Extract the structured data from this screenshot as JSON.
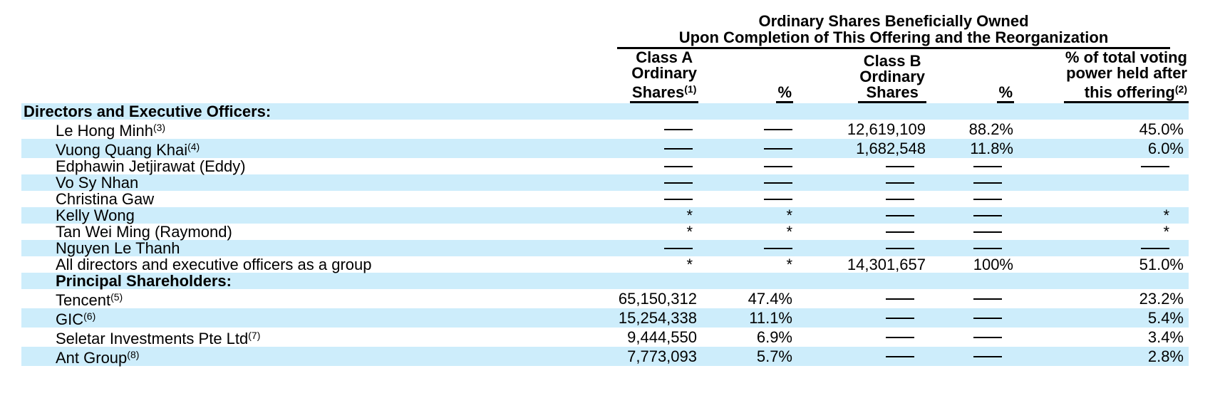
{
  "page": {
    "background_color": "#ffffff",
    "text_color": "#000000",
    "stripe_color": "#CDEDFB"
  },
  "table": {
    "group_header": {
      "line1": "Ordinary Shares Beneficially Owned",
      "line2": "Upon Completion of This Offering and the Reorganization"
    },
    "columns": [
      {
        "id": "classA",
        "label_lines": [
          "Class A",
          "Ordinary",
          "Shares"
        ],
        "sup": "(1)"
      },
      {
        "id": "pctA",
        "label_lines": [
          "%"
        ]
      },
      {
        "id": "classB",
        "label_lines": [
          "Class B",
          "Ordinary",
          "Shares"
        ]
      },
      {
        "id": "pctB",
        "label_lines": [
          "%"
        ]
      },
      {
        "id": "voting",
        "label_lines": [
          "% of total voting",
          "power held after",
          "this offering"
        ],
        "sup": "(2)"
      }
    ],
    "rows": [
      {
        "label": "Directors and Executive Officers:",
        "bold": true,
        "indent": 0,
        "cells": [
          "",
          "",
          "",
          "",
          ""
        ]
      },
      {
        "label": "Le Hong Minh",
        "sup": "(3)",
        "indent": 1,
        "cells": [
          "—",
          "—",
          "12,619,109",
          "88.2%",
          "45.0%"
        ]
      },
      {
        "label": "Vuong Quang Khai",
        "sup": "(4)",
        "indent": 1,
        "cells": [
          "—",
          "—",
          "1,682,548",
          "11.8%",
          "6.0%"
        ]
      },
      {
        "label": "Edphawin Jetjirawat (Eddy)",
        "indent": 1,
        "cells": [
          "—",
          "—",
          "—",
          "—",
          "—"
        ]
      },
      {
        "label": "Vo Sy Nhan",
        "indent": 1,
        "cells": [
          "—",
          "—",
          "—",
          "—",
          ""
        ]
      },
      {
        "label": "Christina Gaw",
        "indent": 1,
        "cells": [
          "—",
          "—",
          "—",
          "—",
          ""
        ]
      },
      {
        "label": "Kelly Wong",
        "indent": 1,
        "cells": [
          "*",
          "*",
          "—",
          "—",
          "*"
        ]
      },
      {
        "label": "Tan Wei Ming (Raymond)",
        "indent": 1,
        "cells": [
          "*",
          "*",
          "—",
          "—",
          "*"
        ]
      },
      {
        "label": "Nguyen Le Thanh",
        "indent": 1,
        "cells": [
          "—",
          "—",
          "—",
          "—",
          "—"
        ]
      },
      {
        "label": "All directors and executive officers as a group",
        "indent": 1,
        "cells": [
          "*",
          "*",
          "14,301,657",
          "100%",
          "51.0%"
        ]
      },
      {
        "label": "Principal Shareholders:",
        "bold": true,
        "indent": 1,
        "cells": [
          "",
          "",
          "",
          "",
          ""
        ]
      },
      {
        "label": "Tencent",
        "sup": "(5)",
        "indent": 1,
        "cells": [
          "65,150,312",
          "47.4%",
          "—",
          "—",
          "23.2%"
        ]
      },
      {
        "label": "GIC",
        "sup": "(6)",
        "indent": 1,
        "cells": [
          "15,254,338",
          "11.1%",
          "—",
          "—",
          "5.4%"
        ]
      },
      {
        "label": "Seletar Investments Pte Ltd",
        "sup": "(7)",
        "indent": 1,
        "cells": [
          "9,444,550",
          "6.9%",
          "—",
          "—",
          "3.4%"
        ]
      },
      {
        "label": "Ant Group",
        "sup": "(8)",
        "indent": 1,
        "cells": [
          "7,773,093",
          "5.7%",
          "—",
          "—",
          "2.8%"
        ]
      }
    ]
  }
}
